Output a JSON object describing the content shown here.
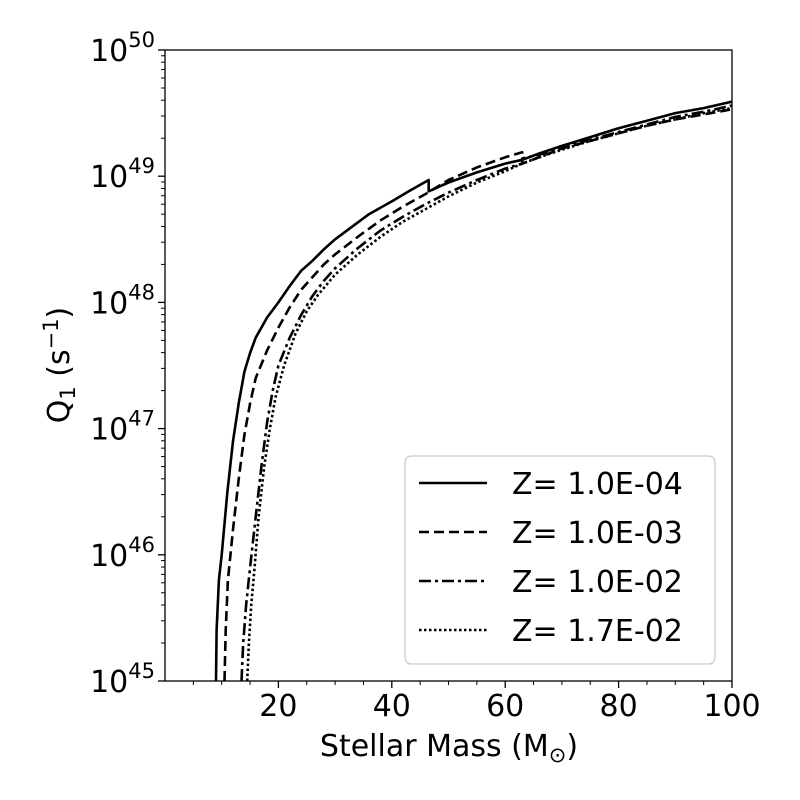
{
  "chart_data": {
    "type": "line",
    "xlabel": "Stellar Mass (M",
    "xlabel_sub": "⊙",
    "xlabel_end": ")",
    "ylabel": "Q",
    "ylabel_sub": "1",
    "ylabel_unit": " (s",
    "ylabel_sup": "−1",
    "ylabel_end": ")",
    "xlim": [
      0,
      100
    ],
    "ylim_log10": [
      45,
      50
    ],
    "y_scale": "log",
    "x_ticks": [
      {
        "value": 20,
        "label": "20"
      },
      {
        "value": 40,
        "label": "40"
      },
      {
        "value": 60,
        "label": "60"
      },
      {
        "value": 80,
        "label": "80"
      },
      {
        "value": 100,
        "label": "100"
      }
    ],
    "y_ticks": [
      {
        "exp": 45,
        "base": "10",
        "sup": "45"
      },
      {
        "exp": 46,
        "base": "10",
        "sup": "46"
      },
      {
        "exp": 47,
        "base": "10",
        "sup": "47"
      },
      {
        "exp": 48,
        "base": "10",
        "sup": "48"
      },
      {
        "exp": 49,
        "base": "10",
        "sup": "49"
      },
      {
        "exp": 50,
        "base": "10",
        "sup": "50"
      }
    ],
    "grid": false,
    "legend_position": "lower-right",
    "series": [
      {
        "name": "Z= 1.0E-04",
        "dash": "solid",
        "points": [
          [
            9,
            45.0
          ],
          [
            9.1,
            45.4
          ],
          [
            9.5,
            45.8
          ],
          [
            10,
            46.0
          ],
          [
            11,
            46.5
          ],
          [
            12,
            46.9
          ],
          [
            13,
            47.2
          ],
          [
            14,
            47.45
          ],
          [
            15,
            47.6
          ],
          [
            16,
            47.72
          ],
          [
            18,
            47.88
          ],
          [
            20,
            48.0
          ],
          [
            22,
            48.13
          ],
          [
            24,
            48.25
          ],
          [
            26,
            48.33
          ],
          [
            28,
            48.42
          ],
          [
            30,
            48.5
          ],
          [
            33,
            48.6
          ],
          [
            36,
            48.7
          ],
          [
            40,
            48.8
          ],
          [
            43,
            48.88
          ],
          [
            46.5,
            48.97
          ],
          [
            46.5,
            48.88
          ],
          [
            50,
            48.95
          ],
          [
            55,
            49.03
          ],
          [
            60,
            49.1
          ],
          [
            63,
            49.13
          ],
          [
            66,
            49.18
          ],
          [
            70,
            49.24
          ],
          [
            75,
            49.31
          ],
          [
            80,
            49.38
          ],
          [
            85,
            49.44
          ],
          [
            90,
            49.5
          ],
          [
            95,
            49.54
          ],
          [
            100,
            49.59
          ]
        ]
      },
      {
        "name": "Z= 1.0E-03",
        "dash": "dashed",
        "points": [
          [
            10.5,
            45.0
          ],
          [
            10.7,
            45.4
          ],
          [
            11.1,
            45.8
          ],
          [
            12,
            46.2
          ],
          [
            13,
            46.6
          ],
          [
            14,
            46.95
          ],
          [
            15,
            47.2
          ],
          [
            16,
            47.4
          ],
          [
            18,
            47.62
          ],
          [
            20,
            47.8
          ],
          [
            22,
            47.96
          ],
          [
            24,
            48.1
          ],
          [
            26,
            48.2
          ],
          [
            28,
            48.3
          ],
          [
            30,
            48.38
          ],
          [
            34,
            48.52
          ],
          [
            38,
            48.65
          ],
          [
            42,
            48.76
          ],
          [
            46,
            48.86
          ],
          [
            50,
            48.97
          ],
          [
            55,
            49.07
          ],
          [
            60,
            49.15
          ],
          [
            63,
            49.19
          ],
          [
            63,
            49.1
          ],
          [
            66,
            49.15
          ],
          [
            70,
            49.22
          ],
          [
            75,
            49.28
          ],
          [
            80,
            49.34
          ],
          [
            85,
            49.4
          ],
          [
            90,
            49.45
          ],
          [
            95,
            49.49
          ],
          [
            100,
            49.53
          ]
        ]
      },
      {
        "name": "Z= 1.0E-02",
        "dash": "dashdot",
        "points": [
          [
            13.5,
            45.0
          ],
          [
            13.8,
            45.3
          ],
          [
            14.3,
            45.6
          ],
          [
            15,
            45.9
          ],
          [
            16,
            46.3
          ],
          [
            17,
            46.7
          ],
          [
            18,
            47.05
          ],
          [
            19,
            47.3
          ],
          [
            20,
            47.5
          ],
          [
            22,
            47.72
          ],
          [
            24,
            47.9
          ],
          [
            26,
            48.05
          ],
          [
            28,
            48.17
          ],
          [
            30,
            48.27
          ],
          [
            34,
            48.43
          ],
          [
            38,
            48.57
          ],
          [
            42,
            48.68
          ],
          [
            46,
            48.78
          ],
          [
            50,
            48.87
          ],
          [
            55,
            48.97
          ],
          [
            60,
            49.06
          ],
          [
            63,
            49.1
          ],
          [
            63,
            49.14
          ],
          [
            66,
            49.17
          ],
          [
            70,
            49.22
          ],
          [
            75,
            49.29
          ],
          [
            80,
            49.35
          ],
          [
            85,
            49.41
          ],
          [
            90,
            49.47
          ],
          [
            95,
            49.51
          ],
          [
            100,
            49.56
          ]
        ]
      },
      {
        "name": "Z= 1.7E-02",
        "dash": "dotted",
        "points": [
          [
            14.5,
            45.0
          ],
          [
            14.8,
            45.3
          ],
          [
            15.2,
            45.6
          ],
          [
            15.8,
            45.9
          ],
          [
            16.5,
            46.3
          ],
          [
            17.5,
            46.7
          ],
          [
            18.5,
            47.0
          ],
          [
            19.5,
            47.25
          ],
          [
            21,
            47.5
          ],
          [
            23,
            47.75
          ],
          [
            25,
            47.93
          ],
          [
            27,
            48.06
          ],
          [
            30,
            48.22
          ],
          [
            34,
            48.38
          ],
          [
            38,
            48.52
          ],
          [
            42,
            48.64
          ],
          [
            46,
            48.74
          ],
          [
            50,
            48.84
          ],
          [
            55,
            48.95
          ],
          [
            60,
            49.04
          ],
          [
            63,
            49.1
          ],
          [
            66,
            49.15
          ],
          [
            70,
            49.21
          ],
          [
            75,
            49.28
          ],
          [
            80,
            49.34
          ],
          [
            85,
            49.4
          ],
          [
            90,
            49.45
          ],
          [
            95,
            49.5
          ],
          [
            100,
            49.54
          ]
        ]
      }
    ]
  }
}
